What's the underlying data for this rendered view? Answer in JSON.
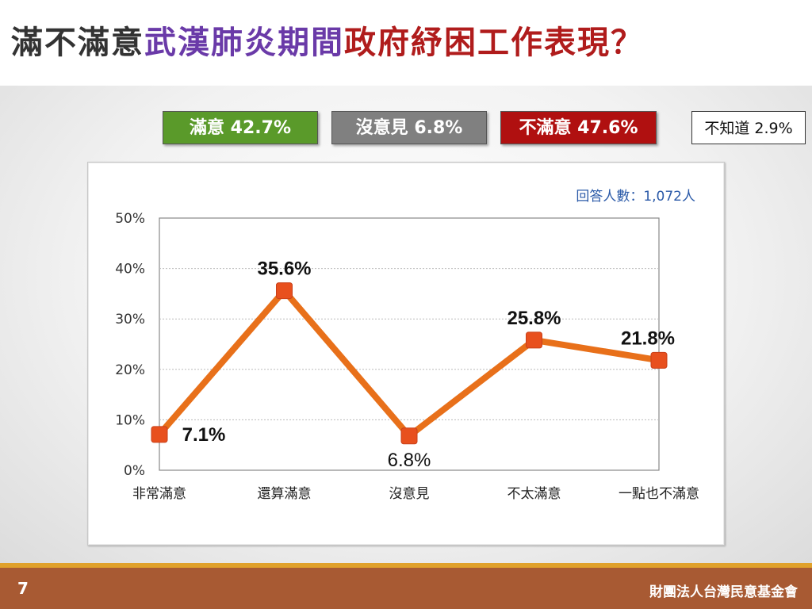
{
  "title": {
    "part1": "滿不滿意",
    "part2": "武漢肺炎期間",
    "part3": "政府紓困工作表現？",
    "colors": {
      "part1": "#333333",
      "part2": "#6a3aa8",
      "part3": "#b01c1c"
    }
  },
  "summary": [
    {
      "label": "滿意 42.7%",
      "bg": "#5a9a2a"
    },
    {
      "label": "沒意見 6.8%",
      "bg": "#808080"
    },
    {
      "label": "不滿意 47.6%",
      "bg": "#b01010"
    },
    {
      "label": "不知道 2.9%",
      "bg": "#ffffff"
    }
  ],
  "respondents": "回答人數：1,072人",
  "chart_data": {
    "type": "line",
    "categories": [
      "非常滿意",
      "還算滿意",
      "沒意見",
      "不太滿意",
      "一點也不滿意"
    ],
    "series": [
      {
        "values": [
          7.1,
          35.6,
          6.8,
          25.8,
          21.8
        ]
      }
    ],
    "data_labels": [
      "7.1%",
      "35.6%",
      "6.8%",
      "25.8%",
      "21.8%"
    ],
    "yticks": [
      "0%",
      "10%",
      "20%",
      "30%",
      "40%",
      "50%"
    ],
    "ylim": [
      0,
      50
    ],
    "grid": true,
    "line_color": "#e8701a",
    "marker_color": "#e8501e"
  },
  "footer": {
    "page": "7",
    "org": "財團法人台灣民意基金會"
  }
}
